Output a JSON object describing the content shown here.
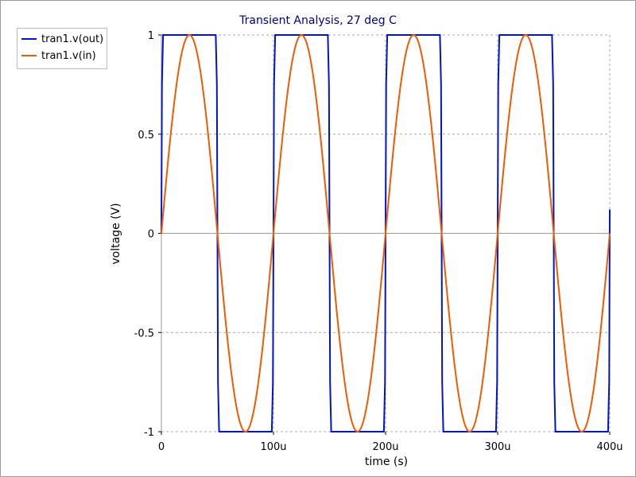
{
  "chart_data": {
    "type": "line",
    "title": "Transient Analysis, 27 deg C",
    "xlabel": "time (s)",
    "ylabel": "voltage (V)",
    "xlim": [
      0,
      400
    ],
    "ylim": [
      -1,
      1
    ],
    "x_unit_suffix": "u",
    "x_ticks": [
      {
        "value": 0,
        "label": "0"
      },
      {
        "value": 100,
        "label": "100u"
      },
      {
        "value": 200,
        "label": "200u"
      },
      {
        "value": 300,
        "label": "300u"
      },
      {
        "value": 400,
        "label": "400u"
      }
    ],
    "y_ticks": [
      {
        "value": 1,
        "label": "1"
      },
      {
        "value": 0.5,
        "label": "0.5"
      },
      {
        "value": 0,
        "label": "0"
      },
      {
        "value": -0.5,
        "label": "-0.5"
      },
      {
        "value": -1,
        "label": "-1"
      }
    ],
    "grid": true,
    "legend_position": "top-left outside plot",
    "series": [
      {
        "name": "tran1.v(out)",
        "color": "#0014c8",
        "style": "square wave",
        "x": [
          0,
          0.5,
          1.5,
          48.5,
          49.5,
          50.5,
          51.5,
          98.5,
          99.5,
          100.5,
          101.5,
          148.5,
          149.5,
          150.5,
          151.5,
          198.5,
          199.5,
          200.5,
          201.5,
          248.5,
          249.5,
          250.5,
          251.5,
          298.5,
          299.5,
          300.5,
          301.5,
          348.5,
          349.5,
          350.5,
          351.5,
          398.5,
          399.5,
          400
        ],
        "y": [
          0,
          0.75,
          1,
          1,
          0.75,
          -0.75,
          -1,
          -1,
          -0.75,
          0.75,
          1,
          1,
          0.75,
          -0.75,
          -1,
          -1,
          -0.75,
          0.75,
          1,
          1,
          0.75,
          -0.75,
          -1,
          -1,
          -0.75,
          0.75,
          1,
          1,
          0.75,
          -0.75,
          -1,
          -1,
          -0.75,
          0.12
        ]
      },
      {
        "name": "tran1.v(in)",
        "color": "#f05a00",
        "style": "sine",
        "amplitude": 1,
        "frequency_khz": 10,
        "x_range": [
          0,
          400
        ]
      }
    ]
  }
}
